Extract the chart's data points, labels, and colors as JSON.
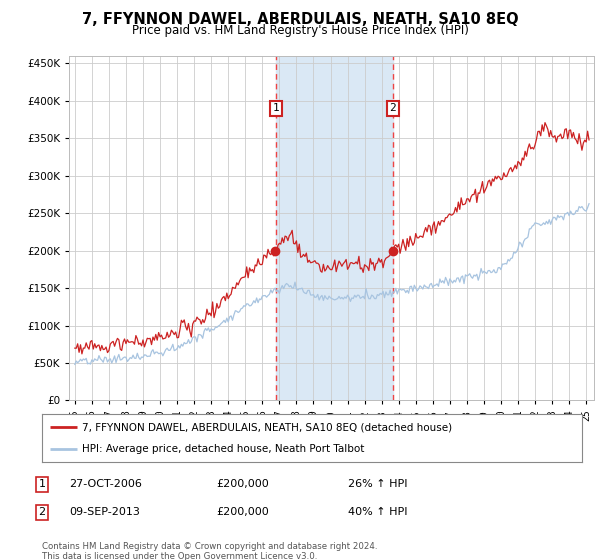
{
  "title": "7, FFYNNON DAWEL, ABERDULAIS, NEATH, SA10 8EQ",
  "subtitle": "Price paid vs. HM Land Registry's House Price Index (HPI)",
  "legend_line1": "7, FFYNNON DAWEL, ABERDULAIS, NEATH, SA10 8EQ (detached house)",
  "legend_line2": "HPI: Average price, detached house, Neath Port Talbot",
  "sale1_date": "27-OCT-2006",
  "sale1_price": "£200,000",
  "sale1_hpi": "26% ↑ HPI",
  "sale2_date": "09-SEP-2013",
  "sale2_price": "£200,000",
  "sale2_hpi": "40% ↑ HPI",
  "footnote": "Contains HM Land Registry data © Crown copyright and database right 2024.\nThis data is licensed under the Open Government Licence v3.0.",
  "hpi_color": "#a8c4e0",
  "price_color": "#cc2222",
  "sale_marker_color": "#cc2222",
  "vline_color": "#ee4444",
  "shade_color": "#dae8f5",
  "ylim": [
    0,
    460000
  ],
  "yticks": [
    0,
    50000,
    100000,
    150000,
    200000,
    250000,
    300000,
    350000,
    400000,
    450000
  ],
  "sale1_x": 2006.83,
  "sale2_x": 2013.69,
  "background_color": "#ffffff",
  "grid_color": "#cccccc"
}
